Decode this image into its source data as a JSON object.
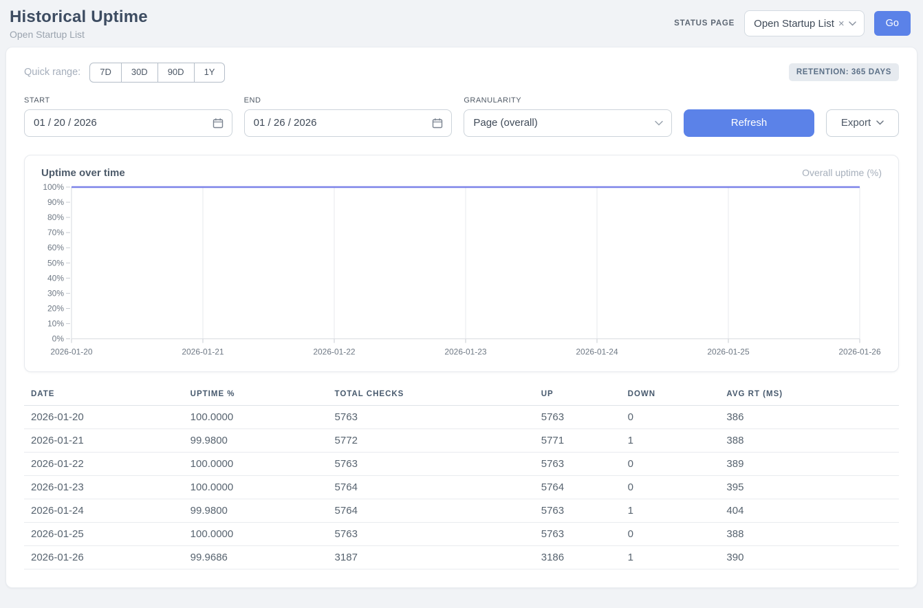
{
  "header": {
    "title": "Historical Uptime",
    "subtitle": "Open Startup List",
    "status_page_label": "STATUS PAGE",
    "status_page_value": "Open Startup List",
    "clear_icon": "×",
    "go_label": "Go"
  },
  "controls": {
    "quick_range_label": "Quick range:",
    "quick_ranges": [
      "7D",
      "30D",
      "90D",
      "1Y"
    ],
    "retention_badge": "RETENTION: 365 DAYS",
    "start_label": "START",
    "start_value": "01 / 20 / 2026",
    "end_label": "END",
    "end_value": "01 / 26 / 2026",
    "granularity_label": "GRANULARITY",
    "granularity_value": "Page (overall)",
    "refresh_label": "Refresh",
    "export_label": "Export"
  },
  "chart_data": {
    "type": "line",
    "title": "Uptime over time",
    "legend": [
      "Overall uptime (%)"
    ],
    "x": [
      "2026-01-20",
      "2026-01-21",
      "2026-01-22",
      "2026-01-23",
      "2026-01-24",
      "2026-01-25",
      "2026-01-26"
    ],
    "series": [
      {
        "name": "Overall uptime (%)",
        "values": [
          100.0,
          99.98,
          100.0,
          100.0,
          99.98,
          100.0,
          99.9686
        ]
      }
    ],
    "ylim": [
      0,
      100
    ],
    "ytick_step": 10,
    "ytick_suffix": "%",
    "grid": "vertical",
    "line_color": "#7b82e8"
  },
  "table": {
    "columns": [
      "DATE",
      "UPTIME %",
      "TOTAL CHECKS",
      "UP",
      "DOWN",
      "AVG RT (MS)"
    ],
    "rows": [
      [
        "2026-01-20",
        "100.0000",
        "5763",
        "5763",
        "0",
        "386"
      ],
      [
        "2026-01-21",
        "99.9800",
        "5772",
        "5771",
        "1",
        "388"
      ],
      [
        "2026-01-22",
        "100.0000",
        "5763",
        "5763",
        "0",
        "389"
      ],
      [
        "2026-01-23",
        "100.0000",
        "5764",
        "5764",
        "0",
        "395"
      ],
      [
        "2026-01-24",
        "99.9800",
        "5764",
        "5763",
        "1",
        "404"
      ],
      [
        "2026-01-25",
        "100.0000",
        "5763",
        "5763",
        "0",
        "388"
      ],
      [
        "2026-01-26",
        "99.9686",
        "3187",
        "3186",
        "1",
        "390"
      ]
    ]
  },
  "colors": {
    "accent": "#5b82e8",
    "line": "#7b82e8",
    "grid": "#e7e9ed",
    "axis": "#d8dbe0",
    "tick": "#c7ccd2",
    "axis_label": "#6e7884"
  }
}
